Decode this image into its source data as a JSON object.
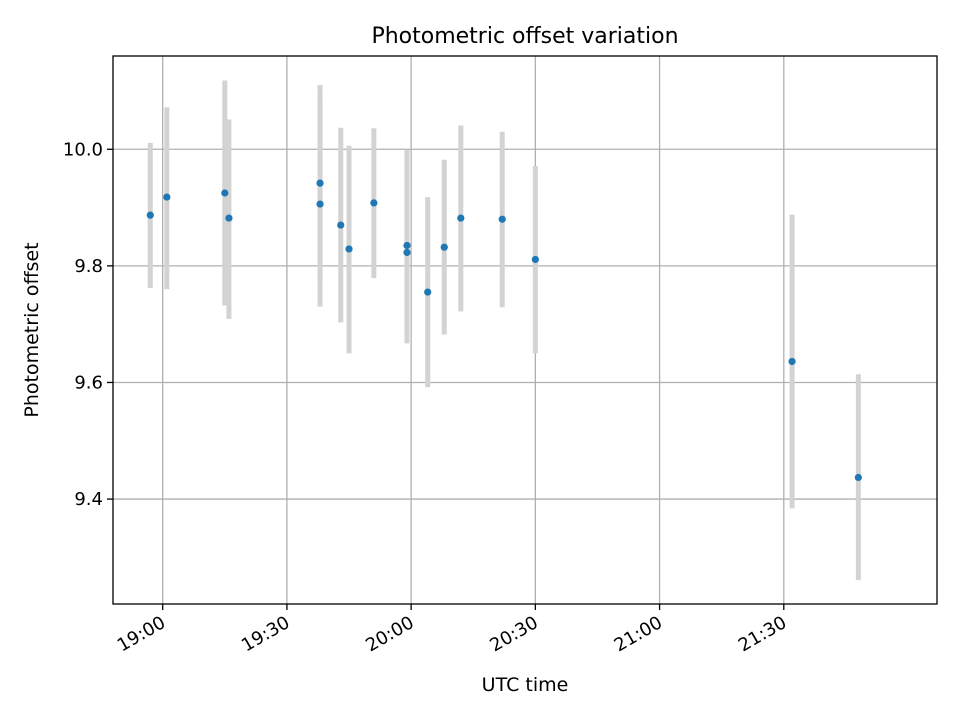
{
  "chart_data": {
    "type": "scatter",
    "title": "Photometric offset variation",
    "xlabel": "UTC time",
    "ylabel": "Photometric offset",
    "x_axis": {
      "kind": "time",
      "ticks": [
        "19:00",
        "19:30",
        "20:00",
        "20:30",
        "21:00",
        "21:30"
      ],
      "xlim": [
        "18:48",
        "22:07"
      ]
    },
    "y_axis": {
      "ticks": [
        "9.4",
        "9.6",
        "9.8",
        "10.0"
      ],
      "ylim": [
        9.22,
        10.16
      ]
    },
    "grid": true,
    "legend": "none",
    "colors": {
      "point": "#1f77b4",
      "errorbar": "#d3d3d3"
    },
    "series": [
      {
        "points": [
          {
            "x": "18:57",
            "y": 9.887,
            "ylo": 9.762,
            "yhi": 10.011
          },
          {
            "x": "19:01",
            "y": 9.918,
            "ylo": 9.76,
            "yhi": 10.072
          },
          {
            "x": "19:15",
            "y": 9.925,
            "ylo": 9.732,
            "yhi": 10.118
          },
          {
            "x": "19:16",
            "y": 9.882,
            "ylo": 9.709,
            "yhi": 10.051
          },
          {
            "x": "19:38",
            "y": 9.906,
            "ylo": 9.73,
            "yhi": 10.084
          },
          {
            "x": "19:38",
            "y": 9.942,
            "ylo": 9.778,
            "yhi": 10.11
          },
          {
            "x": "19:43",
            "y": 9.87,
            "ylo": 9.703,
            "yhi": 10.037
          },
          {
            "x": "19:45",
            "y": 9.829,
            "ylo": 9.65,
            "yhi": 10.006
          },
          {
            "x": "19:51",
            "y": 9.908,
            "ylo": 9.779,
            "yhi": 10.036
          },
          {
            "x": "19:59",
            "y": 9.835,
            "ylo": 9.671,
            "yhi": 9.999
          },
          {
            "x": "19:59",
            "y": 9.823,
            "ylo": 9.667,
            "yhi": 9.978
          },
          {
            "x": "20:04",
            "y": 9.755,
            "ylo": 9.592,
            "yhi": 9.918
          },
          {
            "x": "20:08",
            "y": 9.832,
            "ylo": 9.682,
            "yhi": 9.982
          },
          {
            "x": "20:12",
            "y": 9.882,
            "ylo": 9.722,
            "yhi": 10.041
          },
          {
            "x": "20:22",
            "y": 9.88,
            "ylo": 9.729,
            "yhi": 10.03
          },
          {
            "x": "20:30",
            "y": 9.811,
            "ylo": 9.65,
            "yhi": 9.971
          },
          {
            "x": "21:32",
            "y": 9.636,
            "ylo": 9.384,
            "yhi": 9.888
          },
          {
            "x": "21:48",
            "y": 9.437,
            "ylo": 9.261,
            "yhi": 9.614
          }
        ]
      }
    ]
  }
}
